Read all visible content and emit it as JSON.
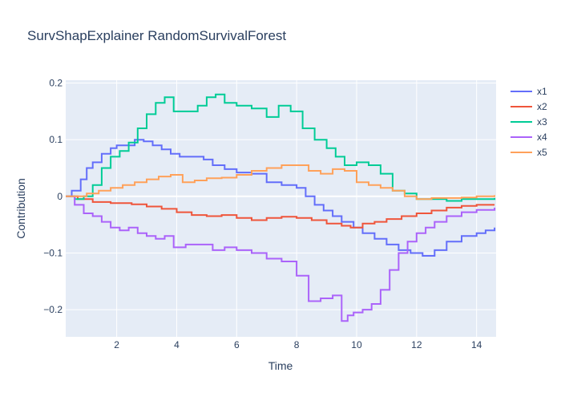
{
  "chart_data": {
    "type": "line",
    "line_shape": "step",
    "title": "SurvShapExplainer RandomSurvivalForest",
    "xlabel": "Time",
    "ylabel": "Contribution",
    "xlim": [
      0.3,
      14.65
    ],
    "ylim": [
      -0.248,
      0.205
    ],
    "xticks": [
      2,
      4,
      6,
      8,
      10,
      12,
      14
    ],
    "xtick_labels": [
      "2",
      "4",
      "6",
      "8",
      "10",
      "12",
      "14"
    ],
    "yticks": [
      -0.2,
      -0.1,
      0,
      0.1,
      0.2
    ],
    "ytick_labels": [
      "−0.2",
      "−0.1",
      "0",
      "0.1",
      "0.2"
    ],
    "grid": true,
    "background": "#e5ecf6",
    "legend_position": "right",
    "series": [
      {
        "name": "x1",
        "color": "#636efa",
        "x": [
          0.3,
          0.5,
          0.8,
          1.0,
          1.2,
          1.5,
          1.8,
          2.0,
          2.3,
          2.6,
          2.9,
          3.2,
          3.5,
          3.8,
          4.1,
          4.5,
          4.9,
          5.2,
          5.6,
          6.0,
          6.5,
          7.0,
          7.5,
          8.0,
          8.3,
          8.6,
          8.9,
          9.2,
          9.5,
          9.9,
          10.2,
          10.6,
          11.0,
          11.4,
          11.8,
          12.2,
          12.6,
          13.0,
          13.5,
          14.0,
          14.3,
          14.6
        ],
        "y": [
          0.0,
          0.01,
          0.03,
          0.05,
          0.06,
          0.075,
          0.085,
          0.09,
          0.09,
          0.1,
          0.097,
          0.09,
          0.083,
          0.075,
          0.07,
          0.07,
          0.065,
          0.055,
          0.048,
          0.042,
          0.04,
          0.025,
          0.02,
          0.015,
          0.0,
          -0.015,
          -0.025,
          -0.035,
          -0.045,
          -0.055,
          -0.065,
          -0.075,
          -0.085,
          -0.095,
          -0.1,
          -0.105,
          -0.095,
          -0.08,
          -0.07,
          -0.065,
          -0.06,
          -0.055
        ]
      },
      {
        "name": "x2",
        "color": "#ef553b",
        "x": [
          0.3,
          0.7,
          1.2,
          1.8,
          2.5,
          3.0,
          3.5,
          4.0,
          4.5,
          5.0,
          5.5,
          6.0,
          6.5,
          7.0,
          7.5,
          8.0,
          8.5,
          9.0,
          9.5,
          9.8,
          10.2,
          10.6,
          11.0,
          11.5,
          12.0,
          12.5,
          13.0,
          13.5,
          14.0,
          14.6
        ],
        "y": [
          0.0,
          -0.005,
          -0.01,
          -0.012,
          -0.014,
          -0.018,
          -0.022,
          -0.028,
          -0.033,
          -0.035,
          -0.033,
          -0.038,
          -0.042,
          -0.038,
          -0.036,
          -0.038,
          -0.042,
          -0.048,
          -0.052,
          -0.055,
          -0.048,
          -0.045,
          -0.04,
          -0.035,
          -0.03,
          -0.025,
          -0.02,
          -0.017,
          -0.015,
          -0.015
        ]
      },
      {
        "name": "x3",
        "color": "#00cc96",
        "x": [
          0.3,
          0.6,
          0.9,
          1.2,
          1.5,
          1.8,
          2.1,
          2.4,
          2.7,
          3.0,
          3.3,
          3.6,
          3.9,
          4.3,
          4.7,
          5.0,
          5.3,
          5.6,
          6.0,
          6.5,
          7.0,
          7.4,
          7.8,
          8.2,
          8.6,
          9.0,
          9.3,
          9.6,
          10.0,
          10.4,
          10.8,
          11.2,
          11.6,
          12.0,
          12.5,
          13.0,
          13.5,
          14.0,
          14.6
        ],
        "y": [
          0.0,
          -0.005,
          0.0,
          0.02,
          0.05,
          0.07,
          0.08,
          0.095,
          0.12,
          0.145,
          0.165,
          0.175,
          0.15,
          0.15,
          0.16,
          0.175,
          0.18,
          0.165,
          0.16,
          0.155,
          0.14,
          0.16,
          0.15,
          0.12,
          0.1,
          0.085,
          0.07,
          0.055,
          0.06,
          0.055,
          0.04,
          0.01,
          0.005,
          -0.005,
          -0.005,
          -0.008,
          -0.005,
          -0.005,
          -0.003
        ]
      },
      {
        "name": "x4",
        "color": "#ab63fa",
        "x": [
          0.3,
          0.6,
          0.9,
          1.2,
          1.5,
          1.8,
          2.1,
          2.4,
          2.7,
          3.0,
          3.3,
          3.6,
          3.9,
          4.3,
          4.7,
          5.2,
          5.6,
          6.0,
          6.5,
          7.0,
          7.5,
          8.0,
          8.4,
          8.8,
          9.2,
          9.5,
          9.7,
          9.9,
          10.2,
          10.5,
          10.8,
          11.1,
          11.4,
          11.7,
          12.0,
          12.3,
          12.6,
          13.0,
          13.5,
          14.0,
          14.6
        ],
        "y": [
          0.0,
          -0.015,
          -0.03,
          -0.035,
          -0.045,
          -0.055,
          -0.06,
          -0.055,
          -0.065,
          -0.07,
          -0.075,
          -0.07,
          -0.09,
          -0.085,
          -0.085,
          -0.095,
          -0.09,
          -0.095,
          -0.1,
          -0.11,
          -0.115,
          -0.14,
          -0.185,
          -0.18,
          -0.175,
          -0.22,
          -0.21,
          -0.205,
          -0.2,
          -0.19,
          -0.165,
          -0.13,
          -0.1,
          -0.08,
          -0.065,
          -0.055,
          -0.045,
          -0.035,
          -0.028,
          -0.024,
          -0.02
        ]
      },
      {
        "name": "x5",
        "color": "#ffa15a",
        "x": [
          0.3,
          0.6,
          1.0,
          1.4,
          1.8,
          2.2,
          2.6,
          3.0,
          3.4,
          3.8,
          4.2,
          4.6,
          5.0,
          5.5,
          6.0,
          6.5,
          7.0,
          7.5,
          8.0,
          8.4,
          8.8,
          9.2,
          9.6,
          10.0,
          10.4,
          10.8,
          11.2,
          11.6,
          12.0,
          12.5,
          13.0,
          13.5,
          14.0,
          14.6
        ],
        "y": [
          0.0,
          0.0,
          0.005,
          0.01,
          0.015,
          0.02,
          0.025,
          0.03,
          0.035,
          0.038,
          0.025,
          0.028,
          0.032,
          0.033,
          0.038,
          0.045,
          0.05,
          0.055,
          0.055,
          0.045,
          0.04,
          0.048,
          0.045,
          0.025,
          0.02,
          0.015,
          0.01,
          0.0,
          -0.005,
          -0.003,
          -0.003,
          -0.002,
          0.0,
          0.002
        ]
      }
    ]
  }
}
